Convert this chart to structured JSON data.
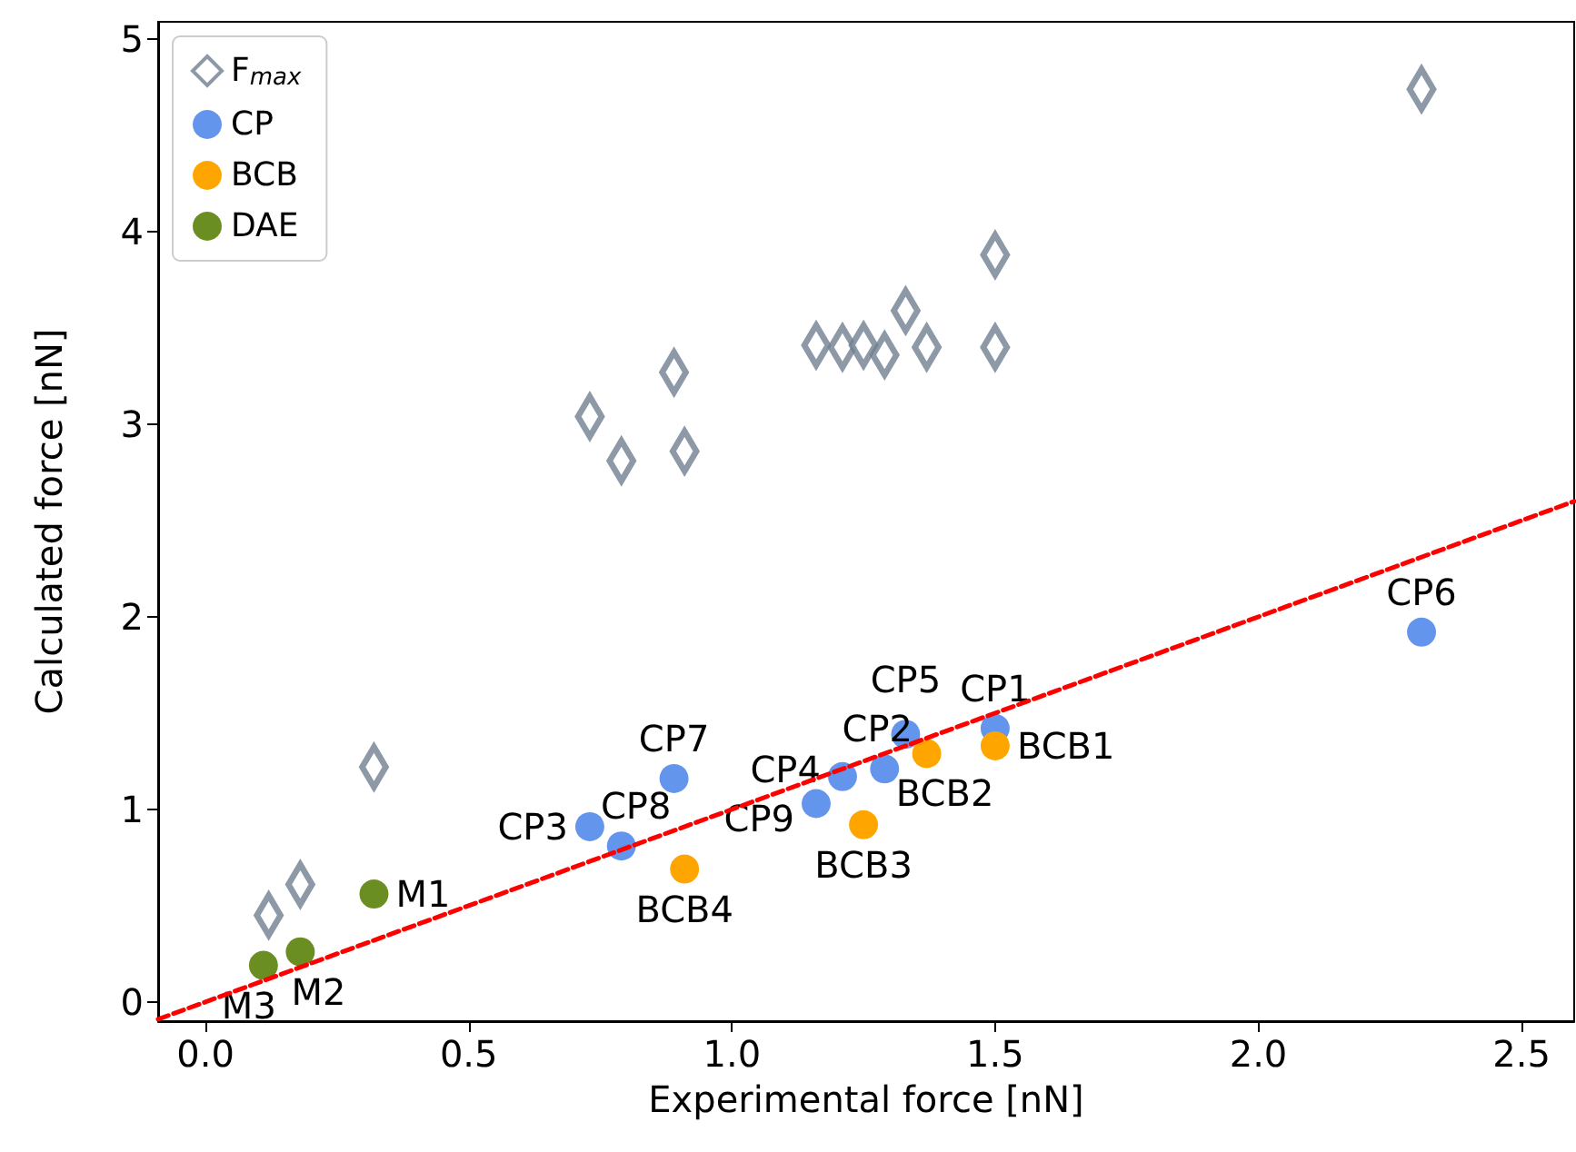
{
  "chart_data": {
    "type": "scatter",
    "xlabel": "Experimental force [nN]",
    "ylabel": "Calculated force [nN]",
    "xlim": [
      -0.09,
      2.6
    ],
    "ylim": [
      -0.1,
      5.09
    ],
    "xticks": [
      {
        "value": 0,
        "label": "0.0"
      },
      {
        "value": 0.5,
        "label": "0.5"
      },
      {
        "value": 1,
        "label": "1.0"
      },
      {
        "value": 1.5,
        "label": "1.5"
      },
      {
        "value": 2,
        "label": "2.0"
      },
      {
        "value": 2.5,
        "label": "2.5"
      }
    ],
    "yticks": [
      0,
      1,
      2,
      3,
      4,
      5
    ],
    "grid": false,
    "legend": "top left",
    "series": [
      {
        "name": "F$_{max}$",
        "color": "#708090",
        "marker": "diamond",
        "x": [
          0.73,
          0.79,
          0.89,
          0.91,
          1.16,
          1.21,
          1.25,
          1.29,
          1.33,
          1.37,
          1.5,
          1.5,
          0.32,
          0.18,
          0.12,
          2.31
        ],
        "values": [
          3.04,
          2.81,
          3.27,
          2.86,
          3.41,
          3.4,
          3.41,
          3.36,
          3.59,
          3.4,
          3.88,
          3.4,
          1.22,
          0.61,
          0.45,
          4.74
        ]
      },
      {
        "name": "CP",
        "color": "#6495ed",
        "marker": "circle",
        "x": [
          0.73,
          0.79,
          0.89,
          1.16,
          1.21,
          1.29,
          1.33,
          1.5,
          2.31
        ],
        "values": [
          0.91,
          0.81,
          1.16,
          1.03,
          1.17,
          1.21,
          1.39,
          1.42,
          1.92
        ],
        "value_labels": [
          "CP3",
          "CP8",
          "CP7",
          "CP9",
          "CP4",
          "CP2",
          "CP5",
          "CP1",
          "CP6"
        ]
      },
      {
        "name": "BCB",
        "color": "#ffa500",
        "marker": "circle",
        "x": [
          0.91,
          1.25,
          1.37,
          1.5
        ],
        "values": [
          0.69,
          0.92,
          1.29,
          1.33
        ],
        "value_labels": [
          "BCB4",
          "BCB3",
          "BCB2",
          "BCB1"
        ]
      },
      {
        "name": "DAE",
        "color": "#6b8e23",
        "marker": "circle",
        "x": [
          0.32,
          0.18,
          0.11
        ],
        "values": [
          0.56,
          0.26,
          0.19
        ],
        "value_labels": [
          "M1",
          "M2",
          "M3"
        ]
      },
      {
        "type": "line",
        "color": "#ff0000",
        "marker": "none",
        "line_style": "dashed",
        "x": [
          -0.09,
          2.6
        ],
        "values": [
          -0.09,
          2.6
        ]
      }
    ]
  }
}
